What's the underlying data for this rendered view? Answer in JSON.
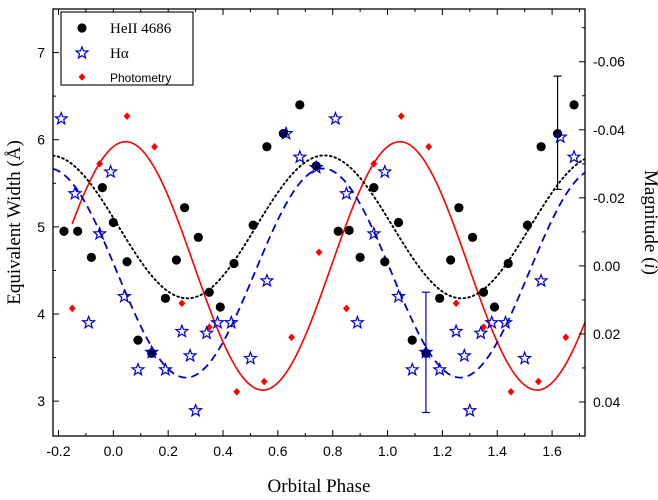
{
  "chart_data": {
    "type": "scatter",
    "xlabel": "Orbital Phase",
    "ylabel_left": "Equivalent Width (Å)",
    "ylabel_right_prefix": "Magnitude (",
    "ylabel_right_var": "i",
    "ylabel_right_suffix": ")",
    "xlim": [
      -0.22,
      1.72
    ],
    "ylim_left": [
      2.6,
      7.5
    ],
    "ylim_right": [
      0.05,
      -0.0755
    ],
    "x_ticks": [
      -0.2,
      0.0,
      0.2,
      0.4,
      0.6,
      0.8,
      1.0,
      1.2,
      1.4,
      1.6
    ],
    "x_tick_labels": [
      "-0.2",
      "0.0",
      "0.2",
      "0.4",
      "0.6",
      "0.8",
      "1.0",
      "1.2",
      "1.4",
      "1.6"
    ],
    "y_left_ticks": [
      3,
      4,
      5,
      6,
      7
    ],
    "y_left_tick_labels": [
      "3",
      "4",
      "5",
      "6",
      "7"
    ],
    "y_right_ticks": [
      0.04,
      0.02,
      0.0,
      -0.02,
      -0.04,
      -0.06
    ],
    "y_right_tick_labels": [
      "0.04",
      "0.02",
      "0.00",
      "-0.02",
      "-0.04",
      "-0.06"
    ],
    "legend": {
      "placement": "top-left",
      "entries": [
        {
          "label": "HeII 4686",
          "marker": "circle",
          "color": "#000000"
        },
        {
          "label": "Hα",
          "marker": "star",
          "color": "#0000cc"
        },
        {
          "label": "Photometry",
          "marker": "diamond",
          "color": "#ff0000"
        }
      ]
    },
    "series": [
      {
        "name": "HeII 4686",
        "axis": "left",
        "marker": "circle",
        "color": "#000000",
        "x": [
          -0.18,
          -0.13,
          -0.08,
          -0.04,
          0.0,
          0.05,
          0.09,
          0.14,
          0.19,
          0.23,
          0.26,
          0.31,
          0.35,
          0.39,
          0.44,
          0.51,
          0.56,
          0.62,
          0.68,
          0.74,
          0.82,
          0.86,
          0.9,
          0.95,
          0.99,
          1.04,
          1.09,
          1.14,
          1.19,
          1.23,
          1.26,
          1.31,
          1.35,
          1.39,
          1.44,
          1.51,
          1.56,
          1.62,
          1.68
        ],
        "y": [
          4.95,
          4.95,
          4.65,
          5.45,
          5.05,
          4.6,
          3.7,
          3.55,
          4.18,
          4.62,
          5.22,
          4.88,
          4.25,
          4.08,
          4.58,
          5.02,
          5.92,
          6.07,
          6.4,
          5.7,
          4.95,
          4.96,
          4.65,
          5.45,
          4.6,
          5.05,
          3.7,
          3.55,
          4.18,
          4.62,
          5.22,
          4.88,
          4.25,
          4.08,
          4.58,
          5.02,
          5.92,
          6.07,
          6.4
        ]
      },
      {
        "name": "Hα",
        "axis": "left",
        "marker": "star",
        "color": "#0000cc",
        "x": [
          -0.19,
          -0.14,
          -0.09,
          -0.05,
          -0.01,
          0.04,
          0.09,
          0.14,
          0.19,
          0.25,
          0.28,
          0.3,
          0.34,
          0.38,
          0.43,
          0.5,
          0.56,
          0.63,
          0.68,
          0.74,
          0.81,
          0.85,
          0.89,
          0.95,
          0.99,
          1.04,
          1.09,
          1.14,
          1.19,
          1.25,
          1.28,
          1.3,
          1.34,
          1.38,
          1.43,
          1.5,
          1.56,
          1.63,
          1.68
        ],
        "y": [
          6.24,
          5.38,
          3.9,
          4.92,
          5.63,
          4.2,
          3.36,
          3.56,
          3.36,
          3.8,
          3.52,
          2.89,
          3.78,
          3.9,
          3.9,
          3.49,
          4.38,
          6.07,
          5.8,
          5.68,
          6.24,
          5.38,
          3.9,
          4.92,
          5.63,
          4.2,
          3.36,
          3.56,
          3.36,
          3.8,
          3.52,
          2.89,
          3.78,
          3.9,
          3.9,
          3.49,
          4.38,
          6.03,
          5.8
        ]
      },
      {
        "name": "Photometry",
        "axis": "right",
        "marker": "diamond",
        "color": "#ff0000",
        "x": [
          -0.15,
          -0.05,
          0.05,
          0.15,
          0.25,
          0.35,
          0.45,
          0.55,
          0.65,
          0.75,
          0.85,
          0.95,
          1.05,
          1.15,
          1.25,
          1.35,
          1.45,
          1.55,
          1.65
        ],
        "y": [
          0.0125,
          -0.03,
          -0.044,
          -0.035,
          0.011,
          0.018,
          0.037,
          0.034,
          0.021,
          -0.004,
          0.0125,
          -0.03,
          -0.044,
          -0.035,
          0.011,
          0.018,
          0.037,
          0.034,
          0.021
        ]
      }
    ],
    "fits": [
      {
        "name": "Photometry fit",
        "axis": "right",
        "style": "solid",
        "color": "#ff0000",
        "x_range": [
          -0.15,
          1.72
        ],
        "mean": 0.0,
        "amplitude": 0.0365,
        "phase_of_minimum": 0.045
      },
      {
        "name": "HeII fit",
        "axis": "left",
        "style": "dotted",
        "color": "#000000",
        "x_range": [
          -0.22,
          1.72
        ],
        "mean": 5.0,
        "amplitude": 0.82,
        "phase_of_maximum": 0.77
      },
      {
        "name": "Hα fit",
        "axis": "left",
        "style": "dashed",
        "color": "#0000cc",
        "x_range": [
          -0.22,
          1.72
        ],
        "mean": 4.47,
        "amplitude": 1.2,
        "phase_of_maximum": 0.765
      }
    ],
    "error_bars": [
      {
        "axis": "left",
        "color": "#0000cc",
        "x": 1.14,
        "y": 3.56,
        "y_low": 2.87,
        "y_high": 4.25
      },
      {
        "axis": "left",
        "color": "#000000",
        "x": 1.62,
        "y": 6.07,
        "y_low": 5.43,
        "y_high": 6.73
      }
    ]
  }
}
